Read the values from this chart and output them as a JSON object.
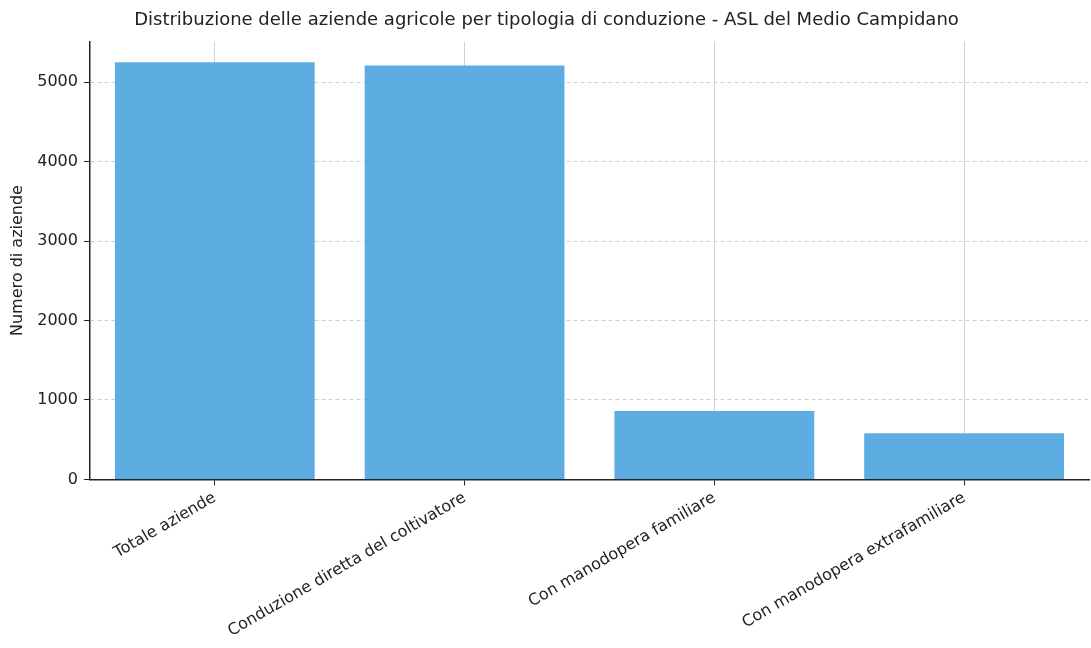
{
  "chart_data": {
    "type": "bar",
    "title": "Distribuzione delle aziende agricole per tipologia di conduzione - ASL del Medio Campidano",
    "ylabel": "Numero di aziende",
    "categories": [
      "Totale aziende",
      "Conduzione diretta del coltivatore",
      "Con manodopera familiare",
      "Con manodopera extrafamiliare"
    ],
    "values": [
      5250,
      5210,
      860,
      580
    ],
    "color": "#5dade2",
    "ylim": [
      0,
      5510
    ],
    "yticks": [
      0,
      1000,
      2000,
      3000,
      4000,
      5000
    ],
    "grid": true,
    "legend": false
  }
}
